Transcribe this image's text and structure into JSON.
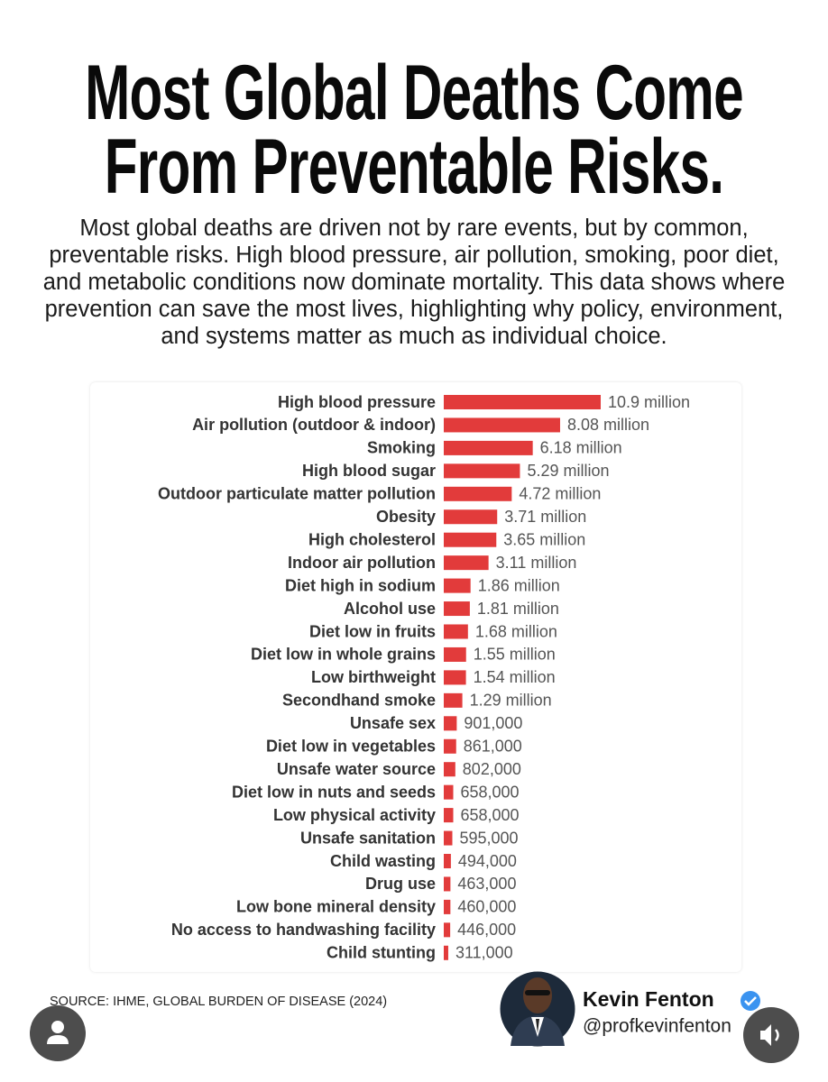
{
  "chart_data": {
    "type": "bar",
    "orientation": "horizontal",
    "title": "Most Global Deaths Come From Preventable Risks.",
    "subtitle": "Most global deaths are driven not by rare events, but by common, preventable risks. High blood pressure, air pollution, smoking, poor diet, and metabolic conditions now dominate mortality. This data shows where prevention can save the most lives, highlighting why policy, environment, and systems matter as much as individual choice.",
    "categories": [
      "High blood pressure",
      "Air pollution (outdoor & indoor)",
      "Smoking",
      "High blood sugar",
      "Outdoor particulate matter pollution",
      "Obesity",
      "High cholesterol",
      "Indoor air pollution",
      "Diet high in sodium",
      "Alcohol use",
      "Diet low in fruits",
      "Diet low in whole grains",
      "Low birthweight",
      "Secondhand smoke",
      "Unsafe sex",
      "Diet low in vegetables",
      "Unsafe water source",
      "Diet low in nuts and seeds",
      "Low physical activity",
      "Unsafe sanitation",
      "Child wasting",
      "Drug use",
      "Low bone mineral density",
      "No access to handwashing facility",
      "Child stunting"
    ],
    "values": [
      10900000,
      8080000,
      6180000,
      5290000,
      4720000,
      3710000,
      3650000,
      3110000,
      1860000,
      1810000,
      1680000,
      1550000,
      1540000,
      1290000,
      901000,
      861000,
      802000,
      658000,
      658000,
      595000,
      494000,
      463000,
      460000,
      446000,
      311000
    ],
    "value_labels": [
      "10.9 million",
      "8.08 million",
      "6.18 million",
      "5.29 million",
      "4.72 million",
      "3.71 million",
      "3.65 million",
      "3.11 million",
      "1.86 million",
      "1.81 million",
      "1.68 million",
      "1.55 million",
      "1.54 million",
      "1.29 million",
      "901,000",
      "861,000",
      "802,000",
      "658,000",
      "658,000",
      "595,000",
      "494,000",
      "463,000",
      "460,000",
      "446,000",
      "311,000"
    ],
    "color": "#e23b3b",
    "source": "SOURCE: IHME, GLOBAL BURDEN OF DISEASE (2024)"
  },
  "author": {
    "name": "Kevin Fenton",
    "handle": "@profkevinfenton"
  }
}
